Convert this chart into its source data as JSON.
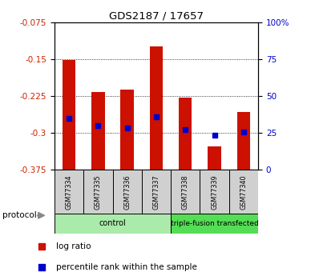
{
  "title": "GDS2187 / 17657",
  "samples": [
    "GSM77334",
    "GSM77335",
    "GSM77336",
    "GSM77337",
    "GSM77338",
    "GSM77339",
    "GSM77340"
  ],
  "log_ratio": [
    -0.152,
    -0.217,
    -0.212,
    -0.125,
    -0.228,
    -0.327,
    -0.258
  ],
  "percentile_rank_y": [
    -0.271,
    -0.285,
    -0.29,
    -0.268,
    -0.293,
    -0.305,
    -0.298
  ],
  "bar_bottom": -0.375,
  "ylim_left": [
    -0.375,
    -0.075
  ],
  "yticks_left": [
    -0.375,
    -0.3,
    -0.225,
    -0.15,
    -0.075
  ],
  "ytick_labels_left": [
    "-0.375",
    "-0.3",
    "-0.225",
    "-0.15",
    "-0.075"
  ],
  "ylim_right": [
    0,
    100
  ],
  "yticks_right": [
    0,
    25,
    50,
    75,
    100
  ],
  "ytick_labels_right": [
    "0",
    "25",
    "50",
    "75",
    "100%"
  ],
  "groups": [
    {
      "label": "control",
      "start": 0,
      "end": 3,
      "color": "#aaeaaa"
    },
    {
      "label": "triple-fusion transfected",
      "start": 4,
      "end": 6,
      "color": "#55dd55"
    }
  ],
  "bar_color": "#cc1100",
  "marker_color": "#0000cc",
  "protocol_label": "protocol",
  "legend_items": [
    {
      "color": "#cc1100",
      "label": "log ratio"
    },
    {
      "color": "#0000cc",
      "label": "percentile rank within the sample"
    }
  ]
}
